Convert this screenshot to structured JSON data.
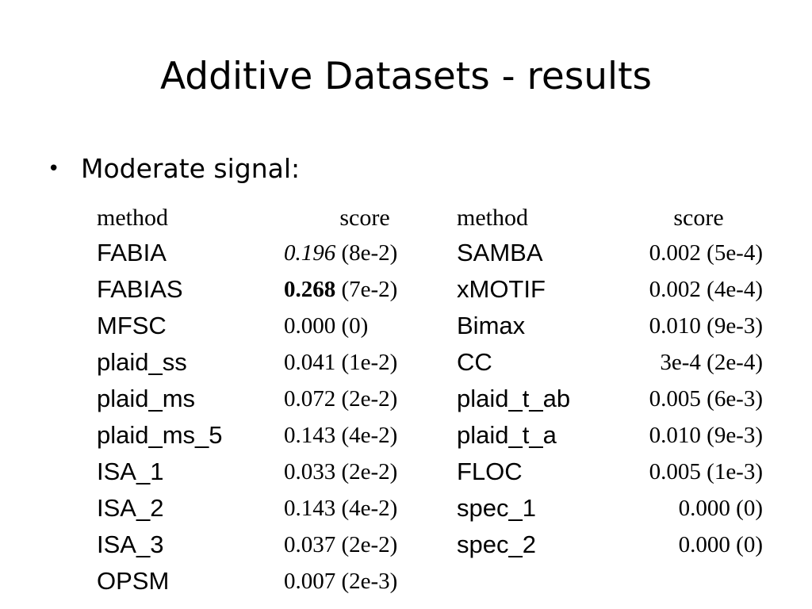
{
  "slide": {
    "title": "Additive Datasets - results",
    "bullet": "Moderate signal:"
  },
  "table": {
    "headers": [
      "method",
      "score",
      "method",
      "score"
    ],
    "left_rows": [
      {
        "method": "FABIA",
        "score": "0.196",
        "err": "(8e-2)",
        "style": "italic"
      },
      {
        "method": "FABIAS",
        "score": "0.268",
        "err": "(7e-2)",
        "style": "bold"
      },
      {
        "method": "MFSC",
        "score": "0.000",
        "err": "(0)",
        "style": "normal"
      },
      {
        "method": "plaid_ss",
        "score": "0.041",
        "err": "(1e-2)",
        "style": "normal"
      },
      {
        "method": "plaid_ms",
        "score": "0.072",
        "err": "(2e-2)",
        "style": "normal"
      },
      {
        "method": "plaid_ms_5",
        "score": "0.143",
        "err": "(4e-2)",
        "style": "normal"
      },
      {
        "method": "ISA_1",
        "score": "0.033",
        "err": "(2e-2)",
        "style": "normal"
      },
      {
        "method": "ISA_2",
        "score": "0.143",
        "err": "(4e-2)",
        "style": "normal"
      },
      {
        "method": "ISA_3",
        "score": "0.037",
        "err": "(2e-2)",
        "style": "normal"
      },
      {
        "method": "OPSM",
        "score": "0.007",
        "err": "(2e-3)",
        "style": "normal"
      }
    ],
    "right_rows": [
      {
        "method": "SAMBA",
        "score": "0.002",
        "err": "(5e-4)"
      },
      {
        "method": "xMOTIF",
        "score": "0.002",
        "err": "(4e-4)"
      },
      {
        "method": "Bimax",
        "score": "0.010",
        "err": "(9e-3)"
      },
      {
        "method": "CC",
        "score": "3e-4",
        "err": "(2e-4)"
      },
      {
        "method": "plaid_t_ab",
        "score": "0.005",
        "err": "(6e-3)"
      },
      {
        "method": "plaid_t_a",
        "score": "0.010",
        "err": "(9e-3)"
      },
      {
        "method": "FLOC",
        "score": "0.005",
        "err": "(1e-3)"
      },
      {
        "method": "spec_1",
        "score": "0.000",
        "err": "(0)"
      },
      {
        "method": "spec_2",
        "score": "0.000",
        "err": "(0)"
      },
      {
        "method": "",
        "score": "",
        "err": ""
      }
    ]
  }
}
